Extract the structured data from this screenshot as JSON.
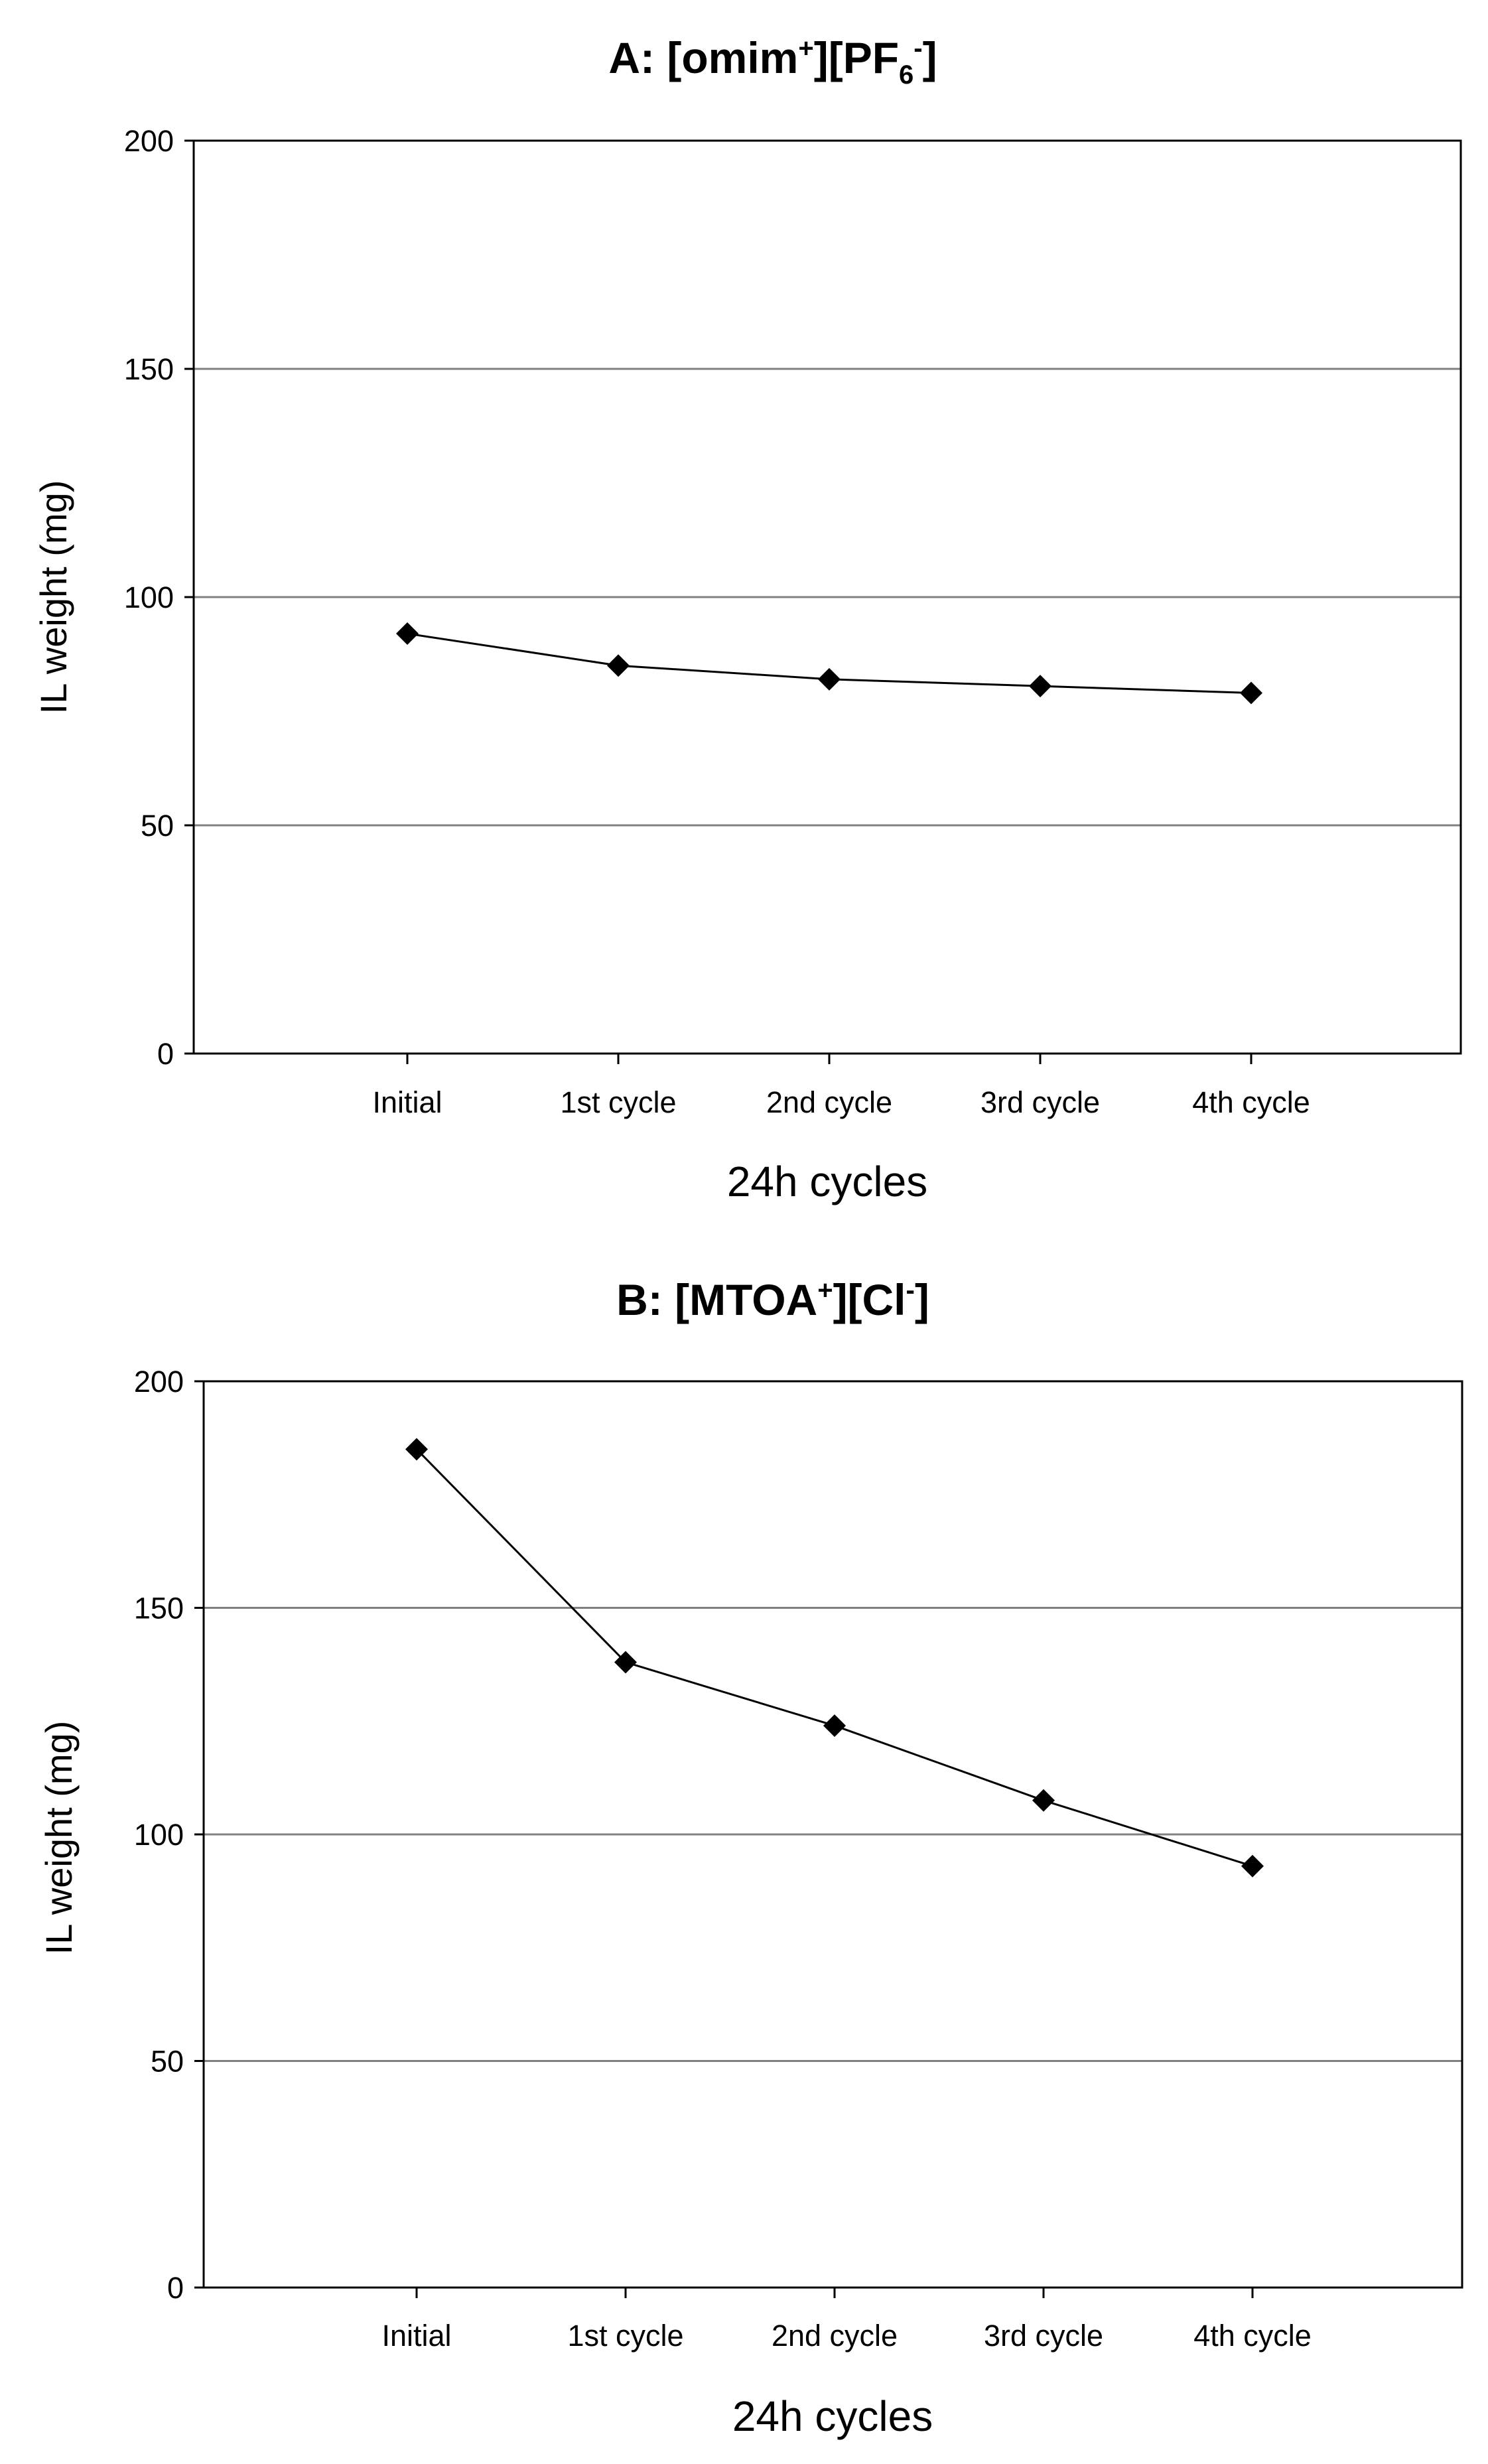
{
  "chart_data": [
    {
      "type": "line",
      "title": {
        "prefix": "A: [omim",
        "cation_charge": "+",
        "mid": "][PF",
        "subscript": "6",
        "anion_charge": "-",
        "suffix": "]"
      },
      "xlabel": "24h cycles",
      "ylabel": "IL weight (mg)",
      "categories": [
        "Initial",
        "1st cycle",
        "2nd cycle",
        "3rd cycle",
        "4th cycle"
      ],
      "values": [
        92,
        85,
        82,
        80.5,
        79
      ],
      "ylim": [
        0,
        200
      ],
      "yticks": [
        0,
        50,
        100,
        150,
        200
      ],
      "grid": true,
      "line_color": "#000000",
      "grid_color": "#808080"
    },
    {
      "type": "line",
      "title": {
        "prefix": "B: [MTOA",
        "cation_charge": "+",
        "mid": "][Cl",
        "subscript": "",
        "anion_charge": "-",
        "suffix": "]"
      },
      "xlabel": "24h cycles",
      "ylabel": "IL weight (mg)",
      "categories": [
        "Initial",
        "1st cycle",
        "2nd cycle",
        "3rd cycle",
        "4th cycle"
      ],
      "values": [
        185,
        138,
        124,
        107.5,
        93
      ],
      "ylim": [
        0,
        200
      ],
      "yticks": [
        0,
        50,
        100,
        150,
        200
      ],
      "grid": true,
      "line_color": "#000000",
      "grid_color": "#808080"
    }
  ]
}
